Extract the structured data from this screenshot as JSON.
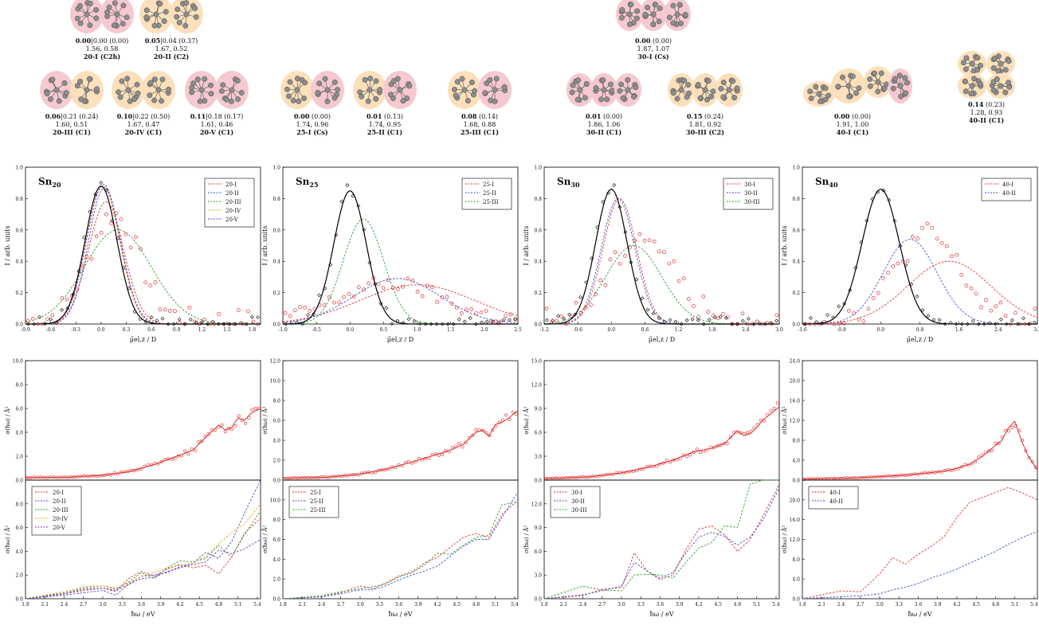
{
  "figure": {
    "isomer_colors": {
      "pink": "#f5c9cf",
      "orange": "#fbe0bb",
      "atom": "#8d8d8d"
    },
    "structures": [
      {
        "group": "20",
        "shape": "pair",
        "c": "pp",
        "energies": "0.00|0.00 (0.00)",
        "dipoles": "1.56, 0.58",
        "label": "20-I (C2h)"
      },
      {
        "group": "20",
        "shape": "pair",
        "c": "oo",
        "energies": "0.05|0.04 (0.37)",
        "dipoles": "1.67, 0.52",
        "label": "20-II (C2)"
      },
      {
        "group": "20",
        "shape": "pair",
        "c": "po",
        "energies": "0.06|0.21 (0.24)",
        "dipoles": "1.60, 0.51",
        "label": "20-III (C1)"
      },
      {
        "group": "20",
        "shape": "pair",
        "c": "oo",
        "energies": "0.10|0.22 (0.50)",
        "dipoles": "1.67, 0.47",
        "label": "20-IV (C1)"
      },
      {
        "group": "20",
        "shape": "pair",
        "c": "pp",
        "energies": "0.11|0.18 (0.17)",
        "dipoles": "1.61, 0.46",
        "label": "20-V (C1)"
      },
      {
        "group": "25",
        "shape": "pair",
        "c": "op",
        "energies": "0.00 (0.00)",
        "dipoles": "1.74, 0.96",
        "label": "25-I (Cs)"
      },
      {
        "group": "25",
        "shape": "pair",
        "c": "op",
        "energies": "0.01 (0.13)",
        "dipoles": "1.74, 0.95",
        "label": "25-II (C1)"
      },
      {
        "group": "25",
        "shape": "pair",
        "c": "op",
        "energies": "0.08 (0.14)",
        "dipoles": "1.68, 0.88",
        "label": "25-III (C1)"
      },
      {
        "group": "30",
        "shape": "triple",
        "c": "ppp",
        "energies": "0.00 (0.00)",
        "dipoles": "1.87, 1.07",
        "label": "30-I (Cs)"
      },
      {
        "group": "30",
        "shape": "triple",
        "c": "ppp",
        "energies": "0.01 (0.00)",
        "dipoles": "1.86, 1.06",
        "label": "30-II (C1)"
      },
      {
        "group": "30",
        "shape": "triple",
        "c": "ooo",
        "energies": "0.15 (0.24)",
        "dipoles": "1.81, 0.92",
        "label": "30-III (C2)"
      },
      {
        "group": "40",
        "shape": "chain",
        "c": "oop",
        "energies": "0.00 (0.00)",
        "dipoles": "1.91, 1.00",
        "label": "40-I (C1)"
      },
      {
        "group": "40",
        "shape": "quad",
        "c": "oooo",
        "energies": "0.14 (0.23)",
        "dipoles": "1.28, 0.93",
        "label": "40-II (C1)"
      }
    ]
  },
  "chart_data": [
    {
      "type": "line",
      "panel": "dipole",
      "title": "Sn20",
      "xlim": [
        -0.9,
        1.9
      ],
      "ylim": [
        0,
        1.0
      ],
      "xticks": [
        "-0.9",
        "-0.6",
        "-0.3",
        "0.0",
        "0.3",
        "0.6",
        "0.9",
        "1.2",
        "1.5",
        "1.8"
      ],
      "yticks": [
        "0.0",
        "0.2",
        "0.4",
        "0.6",
        "0.8",
        "1.0"
      ],
      "xlabel": "μ̄el,z / D",
      "ylabel": "I / arb. units",
      "fit": {
        "color": "#000000",
        "amp": 0.88,
        "center": 0.0,
        "sigma": 0.19
      },
      "series": [
        {
          "name": "20-I",
          "color": "#e03030",
          "amp": 0.78,
          "center": 0.06,
          "sigma": 0.21
        },
        {
          "name": "20-II",
          "color": "#3a4fd0",
          "amp": 0.87,
          "center": 0.04,
          "sigma": 0.19
        },
        {
          "name": "20-III",
          "color": "#2e9a2e",
          "amp": 0.6,
          "center": 0.2,
          "sigma": 0.4
        },
        {
          "name": "20-IV",
          "color": "#f0a020",
          "amp": 0.88,
          "center": 0.02,
          "sigma": 0.2
        },
        {
          "name": "20-V",
          "color": "#7a2fc0",
          "amp": 0.89,
          "center": 0.03,
          "sigma": 0.2
        }
      ],
      "exp_points": {
        "center": 0.0,
        "sigma": 0.19,
        "amp": 0.88,
        "noise": 0.04,
        "color": "#000000"
      },
      "sim_points": {
        "center": 0.15,
        "sigma": 0.3,
        "amp": 0.68,
        "noise": 0.08,
        "color": "#e03030"
      }
    },
    {
      "type": "line",
      "panel": "dipole",
      "title": "Sn25",
      "xlim": [
        -1.0,
        2.5
      ],
      "ylim": [
        0,
        1.0
      ],
      "xticks": [
        "-1.0",
        "-0.5",
        "0.0",
        "0.5",
        "1.0",
        "1.5",
        "2.0",
        "2.5"
      ],
      "yticks": [
        "0.0",
        "0.2",
        "0.4",
        "0.6",
        "0.8",
        "1.0"
      ],
      "xlabel": "μ̄el,z / D",
      "ylabel": "I / arb. units",
      "fit": {
        "color": "#000000",
        "amp": 0.85,
        "center": 0.0,
        "sigma": 0.24
      },
      "series": [
        {
          "name": "25-I",
          "color": "#e03030",
          "amp": 0.25,
          "center": 1.0,
          "sigma": 0.85
        },
        {
          "name": "25-II",
          "color": "#3a4fd0",
          "amp": 0.29,
          "center": 0.7,
          "sigma": 0.65
        },
        {
          "name": "25-III",
          "color": "#2e9a2e",
          "amp": 0.67,
          "center": 0.2,
          "sigma": 0.3
        }
      ],
      "exp_points": {
        "center": 0.0,
        "sigma": 0.24,
        "amp": 0.85,
        "noise": 0.04,
        "color": "#000000"
      },
      "sim_points": {
        "center": 0.6,
        "sigma": 0.75,
        "amp": 0.24,
        "noise": 0.05,
        "color": "#e03030"
      }
    },
    {
      "type": "line",
      "panel": "dipole",
      "title": "Sn30",
      "xlim": [
        -1.2,
        3.0
      ],
      "ylim": [
        0,
        1.0
      ],
      "xticks": [
        "-1.2",
        "-0.6",
        "0.0",
        "0.6",
        "1.2",
        "1.8",
        "2.4",
        "3.0"
      ],
      "yticks": [
        "0.0",
        "0.2",
        "0.4",
        "0.6",
        "0.8",
        "1.0"
      ],
      "xlabel": "μ̄el,z / D",
      "ylabel": "I / arb. units",
      "fit": {
        "color": "#000000",
        "amp": 0.86,
        "center": 0.0,
        "sigma": 0.28
      },
      "series": [
        {
          "name": "30-I",
          "color": "#e03030",
          "amp": 0.8,
          "center": 0.15,
          "sigma": 0.3
        },
        {
          "name": "30-II",
          "color": "#3a4fd0",
          "amp": 0.8,
          "center": 0.12,
          "sigma": 0.3
        },
        {
          "name": "30-III",
          "color": "#2e9a2e",
          "amp": 0.5,
          "center": 0.4,
          "sigma": 0.5
        }
      ],
      "exp_points": {
        "center": 0.0,
        "sigma": 0.28,
        "amp": 0.86,
        "noise": 0.04,
        "color": "#000000"
      },
      "sim_points": {
        "center": 0.55,
        "sigma": 0.55,
        "amp": 0.55,
        "noise": 0.08,
        "color": "#e03030"
      }
    },
    {
      "type": "line",
      "panel": "dipole",
      "title": "Sn40",
      "xlim": [
        -1.6,
        3.2
      ],
      "ylim": [
        0,
        1.0
      ],
      "xticks": [
        "-1.6",
        "-0.8",
        "0.0",
        "0.8",
        "1.6",
        "2.4",
        "3.2"
      ],
      "yticks": [
        "0.0",
        "0.2",
        "0.4",
        "0.6",
        "0.8",
        "1.0"
      ],
      "xlabel": "μ̄el,z / D",
      "ylabel": "I / arb. units",
      "fit": {
        "color": "#000000",
        "amp": 0.86,
        "center": 0.0,
        "sigma": 0.38
      },
      "series": [
        {
          "name": "40-I",
          "color": "#e03030",
          "amp": 0.4,
          "center": 1.4,
          "sigma": 0.85
        },
        {
          "name": "40-II",
          "color": "#3a4fd0",
          "amp": 0.54,
          "center": 0.6,
          "sigma": 0.55
        }
      ],
      "exp_points": {
        "center": 0.0,
        "sigma": 0.38,
        "amp": 0.86,
        "noise": 0.04,
        "color": "#000000"
      },
      "sim_points": {
        "center": 0.95,
        "sigma": 0.65,
        "amp": 0.55,
        "noise": 0.08,
        "color": "#e03030"
      }
    },
    {
      "type": "line",
      "panel": "optical-exp",
      "xlim": [
        1.8,
        5.45
      ],
      "ylim": [
        0,
        10
      ],
      "yticks": [
        "0.0",
        "2.0",
        "4.0",
        "6.0",
        "8.0",
        "10.0"
      ],
      "ylabel": "σ(ħω) / Å²",
      "x": [
        1.8,
        2.5,
        3.0,
        3.4,
        3.8,
        4.1,
        4.4,
        4.6,
        4.8,
        4.9,
        5.0,
        5.1,
        5.2,
        5.3,
        5.45
      ],
      "y": [
        0.2,
        0.25,
        0.4,
        0.7,
        1.3,
        1.9,
        2.5,
        3.6,
        4.6,
        4.2,
        4.4,
        5.2,
        5.0,
        5.6,
        6.0
      ],
      "color": "#e03030"
    },
    {
      "type": "line",
      "panel": "optical-exp",
      "xlim": [
        1.8,
        5.45
      ],
      "ylim": [
        0,
        12
      ],
      "yticks": [
        "0.0",
        "2.0",
        "4.0",
        "6.0",
        "8.0",
        "10.0",
        "12.0"
      ],
      "ylabel": "σ(ħω) / Å²",
      "x": [
        1.8,
        2.5,
        3.0,
        3.4,
        3.8,
        4.1,
        4.4,
        4.6,
        4.8,
        4.9,
        5.0,
        5.1,
        5.2,
        5.3,
        5.45
      ],
      "y": [
        0.2,
        0.3,
        0.6,
        1.1,
        1.8,
        2.4,
        3.0,
        3.6,
        4.8,
        5.0,
        4.4,
        5.6,
        5.8,
        6.2,
        7.0
      ],
      "color": "#e03030"
    },
    {
      "type": "line",
      "panel": "optical-exp",
      "xlim": [
        1.8,
        5.45
      ],
      "ylim": [
        0,
        15
      ],
      "yticks": [
        "0.0",
        "3.0",
        "6.0",
        "9.0",
        "12.0",
        "15.0"
      ],
      "ylabel": "σ(ħω) / Å²",
      "x": [
        1.8,
        2.5,
        3.0,
        3.4,
        3.8,
        4.1,
        4.4,
        4.6,
        4.8,
        4.9,
        5.0,
        5.1,
        5.2,
        5.3,
        5.45
      ],
      "y": [
        0.2,
        0.4,
        0.9,
        1.6,
        2.5,
        3.5,
        4.0,
        4.6,
        6.2,
        5.6,
        5.8,
        6.6,
        7.6,
        8.2,
        9.2
      ],
      "color": "#e03030"
    },
    {
      "type": "line",
      "panel": "optical-exp",
      "xlim": [
        1.8,
        5.45
      ],
      "ylim": [
        0,
        24
      ],
      "yticks": [
        "0.0",
        "4.0",
        "8.0",
        "12.0",
        "16.0",
        "20.0",
        "24.0"
      ],
      "ylabel": "σ(ħω) / Å²",
      "x": [
        1.8,
        2.5,
        3.0,
        3.4,
        3.8,
        4.1,
        4.4,
        4.6,
        4.8,
        4.9,
        5.0,
        5.1,
        5.2,
        5.3,
        5.45
      ],
      "y": [
        0.2,
        0.4,
        0.7,
        1.0,
        1.5,
        2.0,
        3.2,
        4.8,
        7.0,
        8.0,
        10.5,
        11.8,
        8.0,
        5.0,
        2.0
      ],
      "color": "#e03030"
    },
    {
      "type": "line",
      "panel": "optical-calc",
      "xlim": [
        1.8,
        5.45
      ],
      "ylim": [
        0,
        10
      ],
      "xticks": [
        "1.8",
        "2.1",
        "2.4",
        "2.7",
        "3.0",
        "3.3",
        "3.6",
        "3.9",
        "4.2",
        "4.5",
        "4.8",
        "5.1",
        "5.4"
      ],
      "yticks": [
        "0.0",
        "2.0",
        "4.0",
        "6.0",
        "8.0"
      ],
      "ylabel": "σ(ħω) / Å²",
      "xlabel": "ħω / eV",
      "x": [
        1.8,
        2.4,
        2.7,
        3.0,
        3.2,
        3.4,
        3.6,
        3.8,
        4.0,
        4.2,
        4.4,
        4.6,
        4.8,
        5.0,
        5.2,
        5.45
      ],
      "series": [
        {
          "name": "20-I",
          "color": "#e03030",
          "y": [
            0.0,
            0.4,
            0.7,
            0.9,
            0.6,
            1.7,
            2.3,
            1.9,
            2.5,
            2.9,
            2.6,
            2.8,
            2.1,
            3.5,
            5.5,
            6.8
          ]
        },
        {
          "name": "20-II",
          "color": "#3a4fd0",
          "y": [
            0.0,
            0.3,
            0.5,
            0.7,
            0.3,
            1.2,
            1.9,
            2.0,
            2.2,
            2.7,
            3.0,
            3.9,
            3.4,
            4.8,
            7.2,
            10.0
          ]
        },
        {
          "name": "20-III",
          "color": "#2e9a2e",
          "y": [
            0.0,
            0.5,
            0.9,
            1.1,
            0.8,
            1.4,
            2.2,
            1.7,
            2.6,
            3.2,
            3.1,
            3.4,
            4.5,
            3.5,
            5.4,
            7.4
          ]
        },
        {
          "name": "20-IV",
          "color": "#f0a020",
          "y": [
            0.0,
            0.6,
            1.0,
            1.1,
            0.9,
            1.3,
            1.9,
            2.2,
            2.6,
            2.8,
            3.0,
            3.6,
            4.6,
            5.6,
            6.3,
            8.0
          ]
        },
        {
          "name": "20-V",
          "color": "#7a2fc0",
          "y": [
            0.0,
            0.4,
            0.8,
            0.9,
            0.7,
            1.2,
            1.7,
            1.8,
            2.3,
            2.6,
            2.9,
            3.1,
            4.1,
            3.8,
            4.2,
            5.0
          ]
        }
      ]
    },
    {
      "type": "line",
      "panel": "optical-calc",
      "xlim": [
        1.8,
        5.45
      ],
      "ylim": [
        0,
        12
      ],
      "xticks": [
        "1.8",
        "2.1",
        "2.4",
        "2.7",
        "3.0",
        "3.3",
        "3.6",
        "3.9",
        "4.2",
        "4.5",
        "4.8",
        "5.1",
        "5.4"
      ],
      "yticks": [
        "0.0",
        "2.0",
        "4.0",
        "6.0",
        "8.0",
        "10.0"
      ],
      "ylabel": "σ(ħω) / Å²",
      "xlabel": "ħω / eV",
      "x": [
        1.8,
        2.4,
        2.7,
        3.0,
        3.2,
        3.4,
        3.6,
        3.8,
        4.0,
        4.2,
        4.4,
        4.6,
        4.8,
        5.0,
        5.2,
        5.45
      ],
      "series": [
        {
          "name": "25-I",
          "color": "#e03030",
          "y": [
            0.0,
            0.2,
            0.6,
            1.3,
            1.0,
            1.6,
            2.3,
            2.7,
            3.6,
            4.2,
            5.2,
            6.2,
            6.6,
            6.2,
            8.5,
            10.0
          ]
        },
        {
          "name": "25-II",
          "color": "#3a4fd0",
          "y": [
            0.0,
            0.2,
            0.5,
            0.9,
            0.9,
            1.3,
            1.9,
            2.4,
            2.8,
            3.3,
            4.3,
            5.3,
            6.0,
            6.0,
            8.2,
            10.8
          ]
        },
        {
          "name": "25-III",
          "color": "#2e9a2e",
          "y": [
            0.0,
            0.3,
            0.7,
            1.0,
            1.2,
            1.5,
            2.2,
            2.6,
            3.4,
            4.6,
            4.5,
            5.4,
            6.2,
            6.4,
            9.5,
            9.8
          ]
        }
      ]
    },
    {
      "type": "line",
      "panel": "optical-calc",
      "xlim": [
        1.8,
        5.45
      ],
      "ylim": [
        0,
        15
      ],
      "xticks": [
        "1.8",
        "2.1",
        "2.4",
        "2.7",
        "3.0",
        "3.3",
        "3.6",
        "3.9",
        "4.2",
        "4.5",
        "4.8",
        "5.1",
        "5.4"
      ],
      "yticks": [
        "0.0",
        "3.0",
        "6.0",
        "9.0",
        "12.0"
      ],
      "ylabel": "σ(ħω) / Å²",
      "xlabel": "ħω / eV",
      "x": [
        1.8,
        2.4,
        2.7,
        3.0,
        3.2,
        3.4,
        3.6,
        3.8,
        4.0,
        4.2,
        4.4,
        4.6,
        4.8,
        5.0,
        5.2,
        5.45
      ],
      "series": [
        {
          "name": "30-I",
          "color": "#e03030",
          "y": [
            0.0,
            0.4,
            1.2,
            1.4,
            5.8,
            3.5,
            2.4,
            3.0,
            6.2,
            8.8,
            9.2,
            8.1,
            6.0,
            7.5,
            10.5,
            14.5
          ]
        },
        {
          "name": "30-II",
          "color": "#3a4fd0",
          "y": [
            0.0,
            0.5,
            1.0,
            1.6,
            4.6,
            3.5,
            2.6,
            3.3,
            5.8,
            7.8,
            8.4,
            7.9,
            6.8,
            7.8,
            10.0,
            14.0
          ]
        },
        {
          "name": "30-III",
          "color": "#2e9a2e",
          "y": [
            0.0,
            1.6,
            1.1,
            1.0,
            3.0,
            3.1,
            3.0,
            2.6,
            4.6,
            6.4,
            7.1,
            9.2,
            9.0,
            14.5,
            15.0,
            15.0
          ]
        }
      ]
    },
    {
      "type": "line",
      "panel": "optical-calc",
      "xlim": [
        1.8,
        5.45
      ],
      "ylim": [
        0,
        24
      ],
      "xticks": [
        "1.8",
        "2.1",
        "2.4",
        "2.7",
        "3.0",
        "3.3",
        "3.6",
        "3.9",
        "4.2",
        "4.5",
        "4.8",
        "5.1",
        "5.4"
      ],
      "yticks": [
        "0.0",
        "4.0",
        "8.0",
        "12.0",
        "16.0",
        "20.0"
      ],
      "ylabel": "σ(ħω) / Å²",
      "xlabel": "ħω / eV",
      "x": [
        1.8,
        2.4,
        2.7,
        3.0,
        3.2,
        3.4,
        3.6,
        3.8,
        4.0,
        4.2,
        4.4,
        4.6,
        4.8,
        5.0,
        5.2,
        5.45
      ],
      "series": [
        {
          "name": "40-I",
          "color": "#e03030",
          "y": [
            0.0,
            1.6,
            1.4,
            5.0,
            8.3,
            7.0,
            9.0,
            10.6,
            12.5,
            16.5,
            19.5,
            20.5,
            21.5,
            22.5,
            21.5,
            20.0
          ]
        },
        {
          "name": "40-II",
          "color": "#3a4fd0",
          "y": [
            0.0,
            0.4,
            0.6,
            1.0,
            1.8,
            2.3,
            3.1,
            4.2,
            5.0,
            6.0,
            7.2,
            8.4,
            9.6,
            11.0,
            12.3,
            13.6
          ]
        }
      ]
    }
  ]
}
